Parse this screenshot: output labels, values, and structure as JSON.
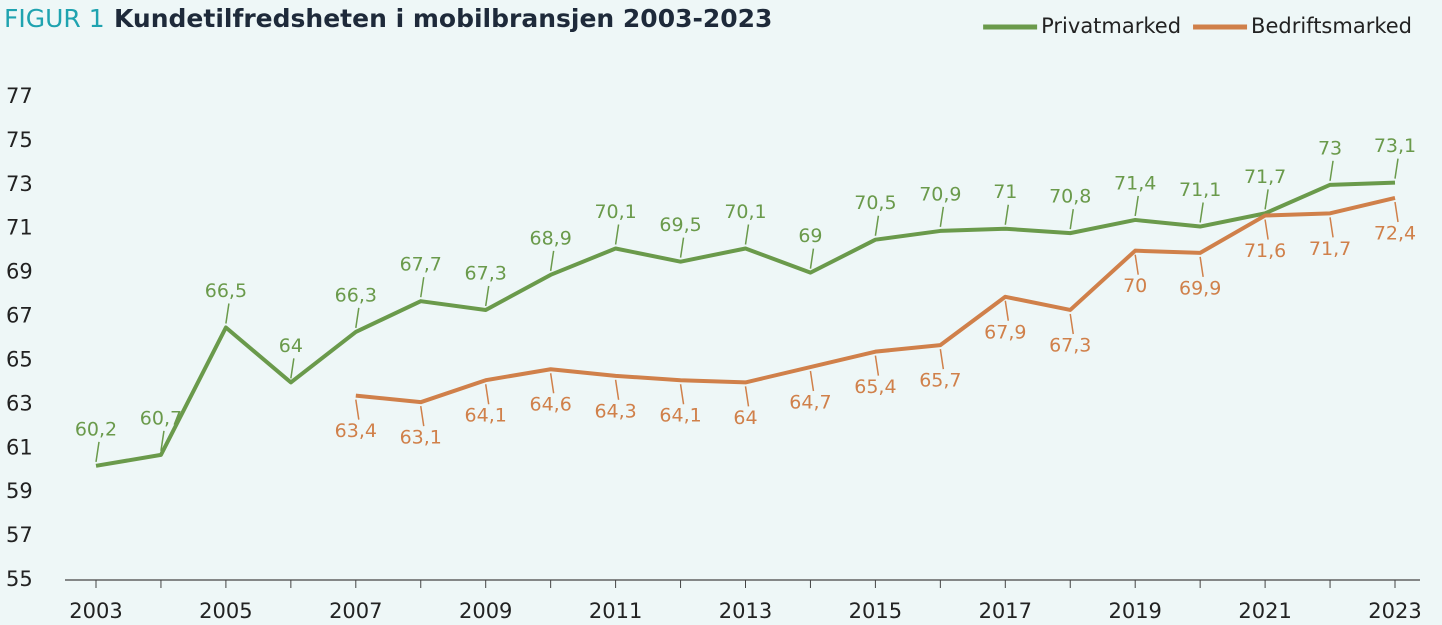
{
  "chart_data": {
    "type": "line",
    "figure_label": "FIGUR 1",
    "title": "Kundetilfredsheten i mobilbransjen 2003-2023",
    "categories": [
      "2003",
      null,
      "2005",
      null,
      "2007",
      null,
      "2009",
      null,
      "2011",
      null,
      "2013",
      null,
      "2015",
      null,
      "2017",
      null,
      "2019",
      null,
      "2021",
      null,
      "2023"
    ],
    "series": [
      {
        "name": "Privatmarked",
        "color": "#6a9a4b",
        "label_side": "above",
        "values": [
          60.2,
          60.7,
          66.5,
          64,
          66.3,
          67.7,
          67.3,
          68.9,
          70.1,
          69.5,
          70.1,
          69,
          70.5,
          70.9,
          71,
          70.8,
          71.4,
          71.1,
          71.7,
          73,
          73.1
        ],
        "value_labels": [
          "60,2",
          "60,7",
          "66,5",
          "64",
          "66,3",
          "67,7",
          "67,3",
          "68,9",
          "70,1",
          "69,5",
          "70,1",
          "69",
          "70,5",
          "70,9",
          "71",
          "70,8",
          "71,4",
          "71,1",
          "71,7",
          "73",
          "73,1"
        ]
      },
      {
        "name": "Bedriftsmarked",
        "color": "#d0804a",
        "label_side": "below",
        "values": [
          null,
          null,
          null,
          null,
          63.4,
          63.1,
          64.1,
          64.6,
          64.3,
          64.1,
          64,
          64.7,
          65.4,
          65.7,
          67.9,
          67.3,
          70,
          69.9,
          71.6,
          71.7,
          72.4
        ],
        "value_labels": [
          null,
          null,
          null,
          null,
          "63,4",
          "63,1",
          "64,1",
          "64,6",
          "64,3",
          "64,1",
          "64",
          "64,7",
          "65,4",
          "65,7",
          "67,9",
          "67,3",
          "70",
          "69,9",
          "71,6",
          "71,7",
          "72,4"
        ]
      }
    ],
    "ylim": [
      55,
      77
    ],
    "yticks": [
      55,
      57,
      59,
      61,
      63,
      65,
      67,
      69,
      71,
      73,
      75,
      77
    ],
    "grid": false,
    "legend": "top-right"
  }
}
